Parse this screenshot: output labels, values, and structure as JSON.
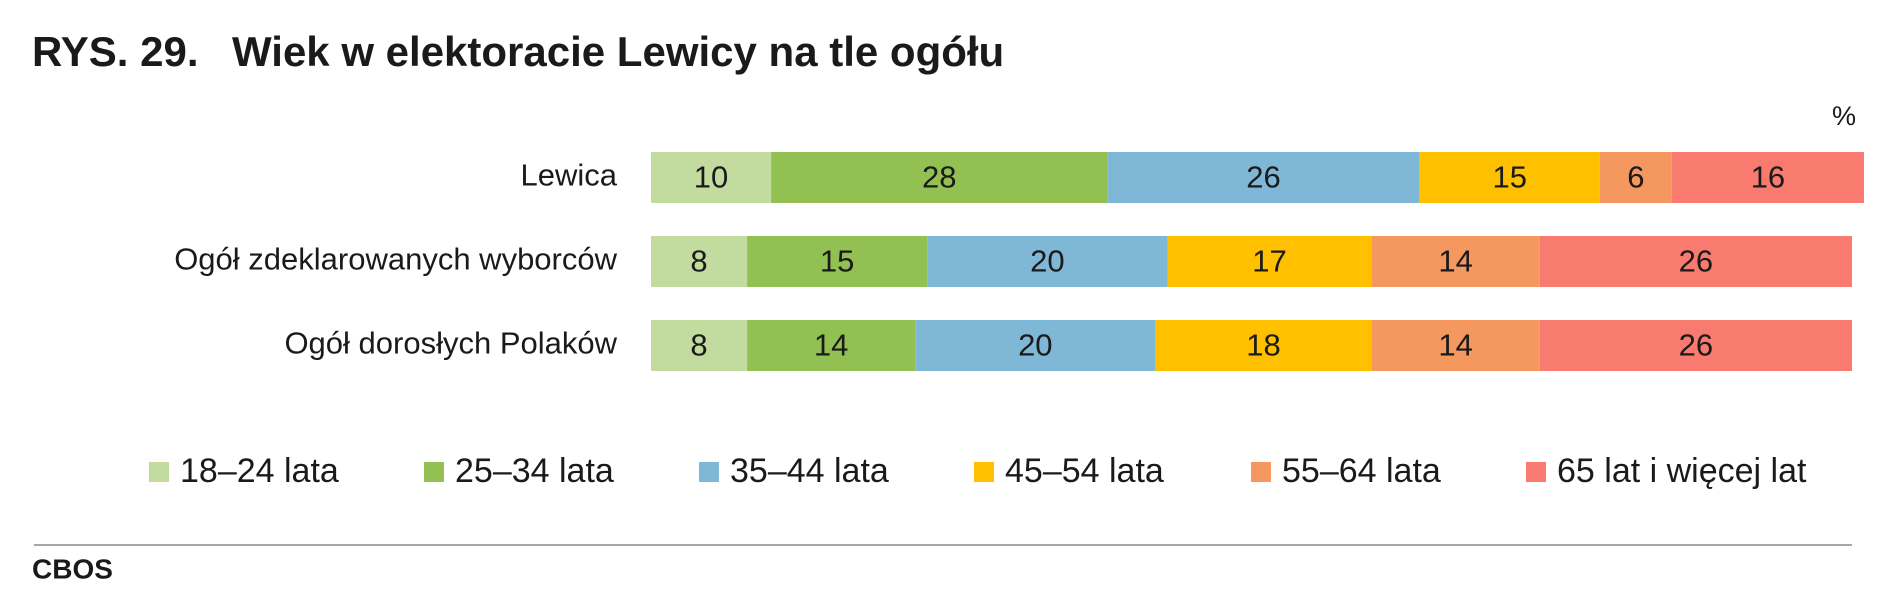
{
  "chart_data": {
    "type": "stacked-bar-horizontal",
    "figure_label": "RYS. 29.",
    "title": "Wiek w elektoracie Lewicy na tle ogółu",
    "unit": "%",
    "categories": [
      "Lewica",
      "Ogół zdeklarowanych wyborców",
      "Ogół dorosłych Polaków"
    ],
    "xlim": [
      0,
      100
    ],
    "series": [
      {
        "name": "18–24 lata",
        "color": "#c2dc9f",
        "values": [
          10,
          8,
          8
        ]
      },
      {
        "name": "25–34 lata",
        "color": "#93c052",
        "values": [
          28,
          15,
          14
        ]
      },
      {
        "name": "35–44 lata",
        "color": "#7fb7d6",
        "values": [
          26,
          20,
          20
        ]
      },
      {
        "name": "45–54 lata",
        "color": "#ffc000",
        "values": [
          15,
          17,
          18
        ]
      },
      {
        "name": "55–64 lata",
        "color": "#f4985f",
        "values": [
          6,
          14,
          14
        ]
      },
      {
        "name": "65 lat i więcej lat",
        "color": "#f97a6e",
        "values": [
          16,
          26,
          26
        ]
      }
    ],
    "source": "CBOS"
  }
}
